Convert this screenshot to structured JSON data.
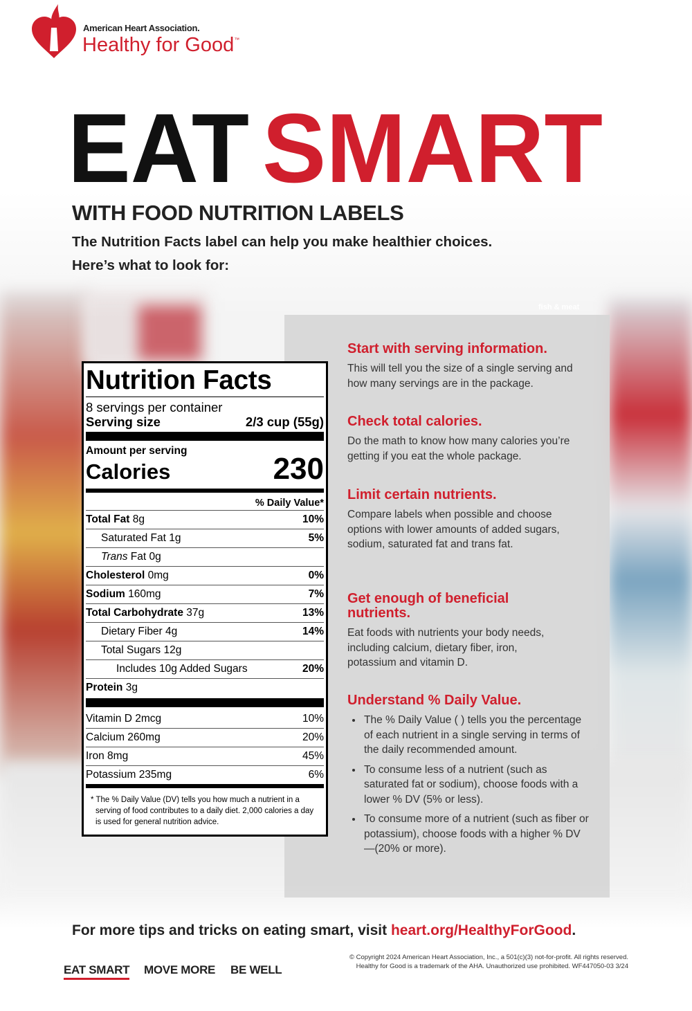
{
  "logo": {
    "org": "American Heart Association.",
    "brand": "Healthy for Good",
    "tm": "™"
  },
  "headline": {
    "part1": "EAT",
    "part2": "SMART"
  },
  "subtitle": "WITH FOOD NUTRITION LABELS",
  "intro": [
    "The Nutrition Facts label can help you make healthier choices.",
    "Here’s what to look for:"
  ],
  "aisle_sign": "fish & meat",
  "nutrition_facts": {
    "title": "Nutrition Facts",
    "servings": "8 servings per container",
    "serving_size_label": "Serving size",
    "serving_size": "2/3 cup (55g)",
    "amount_per_serving": "Amount per serving",
    "calories_label": "Calories",
    "calories": "230",
    "daily_value_header": "% Daily Value*",
    "rows": [
      {
        "name": "Total Fat",
        "amount": "8g",
        "dv": "10%"
      },
      {
        "name": "Saturated Fat",
        "amount": "1g",
        "dv": "5%"
      },
      {
        "name_italic": "Trans",
        "name": "Fat",
        "amount": "0g"
      },
      {
        "name": "Cholesterol",
        "amount": "0mg",
        "dv": "0%"
      },
      {
        "name": "Sodium",
        "amount": "160mg",
        "dv": "7%"
      },
      {
        "name": "Total Carbohydrate",
        "amount": "37g",
        "dv": "13%"
      },
      {
        "name": "Dietary Fiber",
        "amount": "4g",
        "dv": "14%"
      },
      {
        "name": "Total Sugars",
        "amount": "12g"
      },
      {
        "name": "Includes 10g Added Sugars",
        "dv": "20%"
      },
      {
        "name": "Protein",
        "amount": "3g"
      }
    ],
    "vitamins": [
      {
        "name": "Vitamin D",
        "amount": "2mcg",
        "dv": "10%"
      },
      {
        "name": "Calcium",
        "amount": "260mg",
        "dv": "20%"
      },
      {
        "name": "Iron",
        "amount": "8mg",
        "dv": "45%"
      },
      {
        "name": "Potassium",
        "amount": "235mg",
        "dv": "6%"
      }
    ],
    "footnote": "* The % Daily Value (DV) tells you how much a nutrient in a serving of food contributes to a daily diet. 2,000 calories a day is used for general nutrition advice."
  },
  "tips": [
    {
      "title": "Start with serving information.",
      "body": "This will tell you the size of a single serving and how many servings are in the package."
    },
    {
      "title": "Check total calories.",
      "body": "Do the math to know how many calories you’re getting if you eat the whole package."
    },
    {
      "title": "Limit certain nutrients.",
      "body": "Compare labels when possible and choose options with lower amounts of added sugars, sodium, saturated fat and trans fat."
    },
    {
      "title": "Get enough of beneficial nutrients.",
      "body": "Eat foods with nutrients your body needs, including calcium, dietary fiber, iron, potassium and vitamin D."
    },
    {
      "title": "Understand % Daily Value.",
      "bullets": [
        "The % Daily Value ( ) tells you the percentage of each nutrient in a single serving in terms of the daily recommended amount.",
        "To consume less of a nutrient (such as saturated fat or sodium), choose foods with a lower % DV (5% or less).",
        "To consume more of a nutrient (such as fiber or potassium), choose foods with a higher % DV—(20% or more)."
      ]
    }
  ],
  "cta": {
    "text": "For more tips and tricks on eating smart, visit ",
    "link": "heart.org/HealthyForGood",
    "end": "."
  },
  "footer": {
    "nav": [
      "EAT SMART",
      "MOVE MORE",
      "BE WELL"
    ],
    "copyright": [
      "© Copyright 2024 American Heart Association, Inc., a 501(c)(3) not-for-profit. All rights reserved.",
      "Healthy for Good is a trademark of the AHA. Unauthorized use prohibited.  WF447050-03  3/24"
    ]
  }
}
